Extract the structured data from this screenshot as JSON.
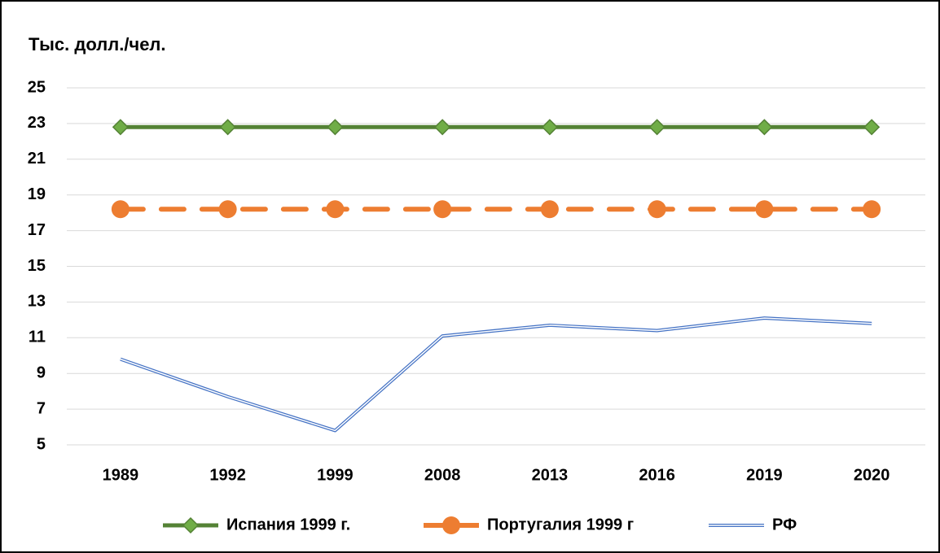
{
  "chart_data": {
    "type": "line",
    "y_axis_label": "Тыс. долл./чел.",
    "categories": [
      "1989",
      "1992",
      "1999",
      "2008",
      "2013",
      "2016",
      "2019",
      "2020"
    ],
    "series": [
      {
        "name": "Испания 1999 г.",
        "color": "#548235",
        "marker": "diamond",
        "marker_color": "#70ad47",
        "dashed": false,
        "double": false,
        "values": [
          22.8,
          22.8,
          22.8,
          22.8,
          22.8,
          22.8,
          22.8,
          22.8
        ]
      },
      {
        "name": "Португалия 1999 г",
        "color": "#ed7d31",
        "marker": "circle",
        "marker_color": "#ed7d31",
        "dashed": true,
        "double": false,
        "values": [
          18.2,
          18.2,
          18.2,
          18.2,
          18.2,
          18.2,
          18.2,
          18.2
        ]
      },
      {
        "name": "РФ",
        "color": "#4472c4",
        "marker": "none",
        "marker_color": "#4472c4",
        "dashed": false,
        "double": true,
        "values": [
          9.8,
          7.7,
          5.8,
          11.1,
          11.7,
          11.4,
          12.1,
          11.8
        ]
      }
    ],
    "ylim": [
      5,
      25
    ],
    "yticks": [
      5,
      7,
      9,
      11,
      13,
      15,
      17,
      19,
      21,
      23,
      25
    ],
    "grid": true,
    "legend": "bottom"
  }
}
